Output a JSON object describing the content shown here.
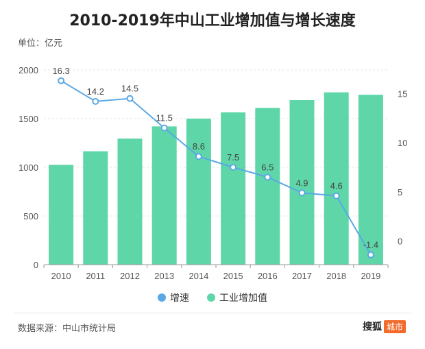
{
  "header": {
    "title": "2010-2019年中山工业增加值与增长速度",
    "unit": "单位：亿元"
  },
  "footer": {
    "source": "数据来源：中山市统计局",
    "brand_name": "搜狐",
    "brand_tag": "城市"
  },
  "colors": {
    "bar": "#5ed6a8",
    "line": "#5aa8e6",
    "grid": "#e6e6e6",
    "axis_text": "#555555"
  },
  "chart_data": {
    "type": "bar+line",
    "title": "2010-2019年中山工业增加值与增长速度",
    "categories": [
      "2010",
      "2011",
      "2012",
      "2013",
      "2014",
      "2015",
      "2016",
      "2017",
      "2018",
      "2019"
    ],
    "series": [
      {
        "name": "工业增加值",
        "type": "bar",
        "axis": "left",
        "values": [
          1025,
          1165,
          1295,
          1420,
          1500,
          1565,
          1610,
          1690,
          1770,
          1745
        ]
      },
      {
        "name": "增速",
        "type": "line",
        "axis": "right",
        "values": [
          16.3,
          14.2,
          14.5,
          11.5,
          8.6,
          7.5,
          6.5,
          4.9,
          4.6,
          -1.4
        ]
      }
    ],
    "y_left": {
      "min": 0,
      "max": 2000,
      "ticks": [
        0,
        500,
        1000,
        1500,
        2000
      ]
    },
    "y_right": {
      "min": -2.4,
      "max": 17.4,
      "ticks": [
        0,
        5,
        10,
        15
      ]
    },
    "grid": true,
    "legend": [
      "增速",
      "工业增加值"
    ],
    "legend_position": "bottom"
  }
}
